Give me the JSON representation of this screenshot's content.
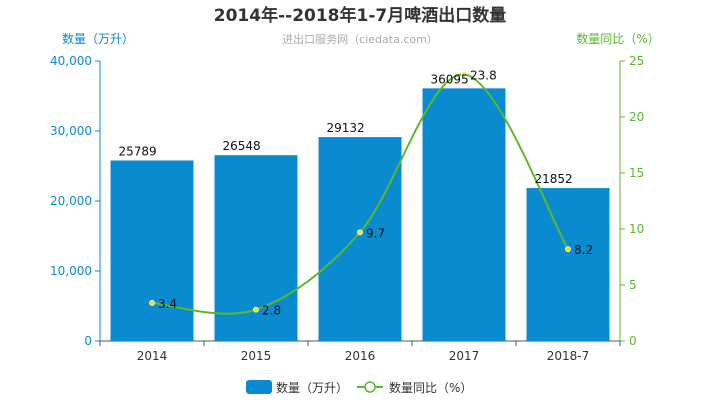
{
  "chart_data": {
    "type": "bar",
    "title": "2014年--2018年1-7月啤酒出口数量",
    "subtitle": "进出口服务网（ciedata.com）",
    "categories": [
      "2014",
      "2015",
      "2016",
      "2017",
      "2018-7"
    ],
    "y_left": {
      "label": "数量（万升）",
      "range": [
        0,
        40000
      ],
      "ticks": [
        "0",
        "10,000",
        "20,000",
        "30,000",
        "40,000"
      ],
      "color": "#0a8bd0"
    },
    "y_right": {
      "label": "数量同比（%）",
      "range": [
        0,
        25
      ],
      "ticks": [
        "0",
        "5",
        "10",
        "15",
        "20",
        "25"
      ],
      "color": "#5cb82d"
    },
    "series": [
      {
        "name": "数量（万升）",
        "type": "bar",
        "axis": "left",
        "color": "#0a8bd0",
        "values": [
          25789,
          26548,
          29132,
          36095,
          21852
        ]
      },
      {
        "name": "数量同比（%）",
        "type": "line",
        "axis": "right",
        "color": "#5cb82d",
        "values": [
          3.4,
          2.8,
          9.7,
          23.8,
          8.2
        ]
      }
    ],
    "grid": false,
    "legend": "bottom-center"
  }
}
